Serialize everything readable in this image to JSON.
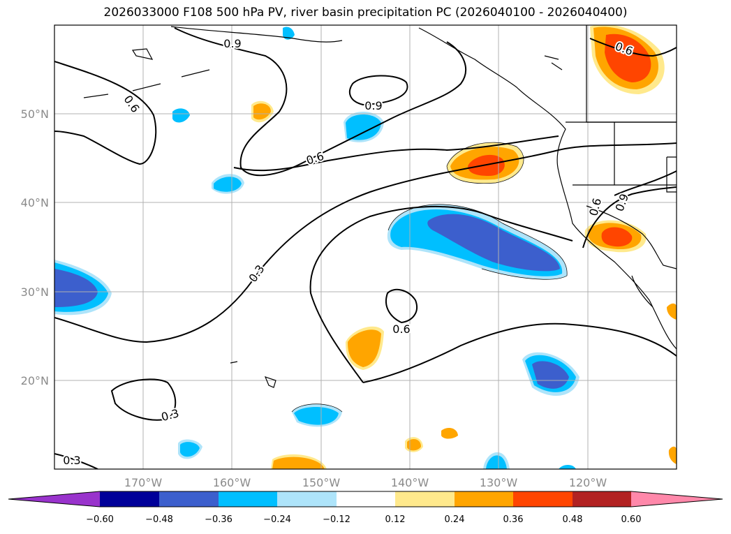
{
  "title": "2026033000 F108 500 hPa PV, river basin precipitation PC (2026040100 - 2026040400)",
  "map": {
    "lat_labels": [
      "50°N",
      "40°N",
      "30°N",
      "20°N"
    ],
    "lon_labels": [
      "170°W",
      "160°W",
      "150°W",
      "140°W",
      "130°W",
      "120°W"
    ],
    "contour_labels": [
      "0.9",
      "0.6",
      "0.9",
      "0.6",
      "0.6",
      "0.6",
      "0.9",
      "0.3",
      "0.6",
      "0.3",
      "0.3"
    ]
  },
  "colorbar": {
    "ticks": [
      "−0.60",
      "−0.48",
      "−0.36",
      "−0.24",
      "−0.12",
      "0.12",
      "0.24",
      "0.36",
      "0.48",
      "0.60"
    ],
    "colors": [
      "#9933cc",
      "#000099",
      "#3c5fcd",
      "#00bfff",
      "#aee4fa",
      "#ffffff",
      "#ffe98c",
      "#ffa500",
      "#ff4500",
      "#b22222",
      "#ff88aa"
    ]
  }
}
